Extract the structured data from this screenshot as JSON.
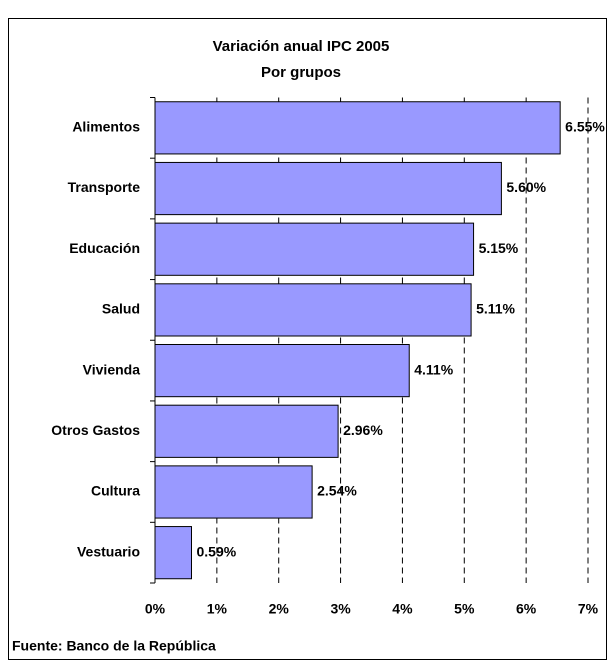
{
  "chart_data": {
    "type": "bar",
    "orientation": "horizontal",
    "title": [
      "Variación anual IPC 2005",
      "Por grupos"
    ],
    "categories": [
      "Alimentos",
      "Transporte",
      "Educación",
      "Salud",
      "Vivienda",
      "Otros Gastos",
      "Cultura",
      "Vestuario"
    ],
    "values": [
      6.55,
      5.6,
      5.15,
      5.11,
      4.11,
      2.96,
      2.54,
      0.59
    ],
    "value_labels": [
      "6.55%",
      "5.60%",
      "5.15%",
      "5.11%",
      "4.11%",
      "2.96%",
      "2.54%",
      "0.59%"
    ],
    "color": "#9999ff",
    "xlim": [
      0,
      7
    ],
    "xticks": [
      {
        "value": 0,
        "label": "0%"
      },
      {
        "value": 1,
        "label": "1%"
      },
      {
        "value": 2,
        "label": "2%"
      },
      {
        "value": 3,
        "label": "3%"
      },
      {
        "value": 4,
        "label": "4%"
      },
      {
        "value": 5,
        "label": "5%"
      },
      {
        "value": 6,
        "label": "6%"
      },
      {
        "value": 7,
        "label": "7%"
      }
    ],
    "grid": true,
    "source": "Fuente: Banco de la República"
  }
}
